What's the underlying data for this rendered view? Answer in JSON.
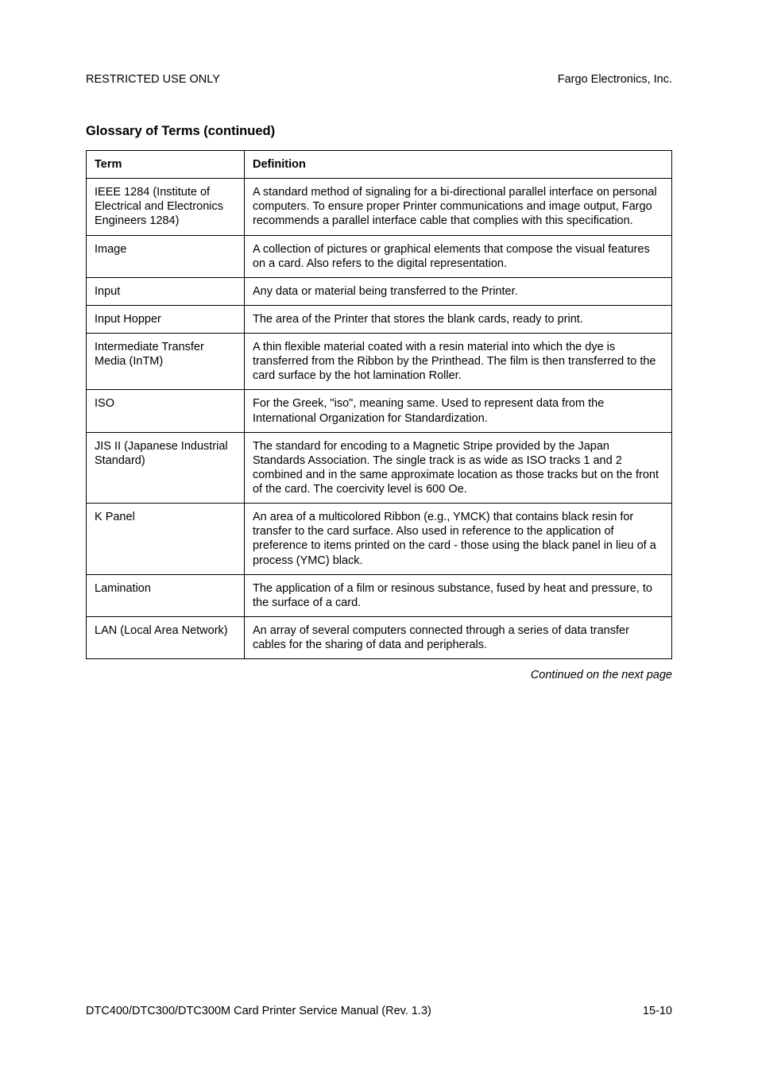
{
  "header": {
    "left": "RESTRICTED USE ONLY",
    "right": "Fargo Electronics, Inc."
  },
  "section_title": "Glossary of Terms (continued)",
  "table": {
    "columns": [
      "Term",
      "Definition"
    ],
    "rows": [
      {
        "term": "IEEE 1284 (Institute of Electrical and Electronics Engineers 1284)",
        "definition": "A standard method of signaling for a bi-directional parallel interface on personal computers. To ensure proper Printer communications and image output, Fargo recommends a parallel interface cable that complies with this specification."
      },
      {
        "term": "Image",
        "definition": "A collection of pictures or graphical elements that compose the visual features on a card. Also refers to the digital representation."
      },
      {
        "term": "Input",
        "definition": "Any data or material being transferred to the Printer."
      },
      {
        "term": "Input Hopper",
        "definition": "The area of the Printer that stores the blank cards, ready to print."
      },
      {
        "term": "Intermediate Transfer Media (InTM)",
        "definition": "A thin flexible material coated with a resin material into which the dye is transferred from the Ribbon by the Printhead. The film is then transferred to the card surface by the hot lamination Roller."
      },
      {
        "term": "ISO",
        "definition": "For the Greek, \"iso\", meaning same. Used to represent data from the International Organization for Standardization."
      },
      {
        "term": "JIS II (Japanese Industrial Standard)",
        "definition": "The standard for encoding to a Magnetic Stripe provided by the Japan Standards Association. The single track is as wide as ISO tracks 1 and 2 combined and in the same approximate location as those tracks but on the front of the card. The coercivity level is 600 Oe."
      },
      {
        "term": "K Panel",
        "definition": "An area of a multicolored Ribbon (e.g., YMCK) that contains black resin for transfer to the card surface. Also used in reference to the application of preference to items printed on the card - those using the black panel in lieu of a process (YMC) black."
      },
      {
        "term": "Lamination",
        "definition": "The application of a film or resinous substance, fused by heat and pressure, to the surface of a card."
      },
      {
        "term": "LAN (Local Area Network)",
        "definition": "An array of several computers connected through a series of data transfer cables for the sharing of data and peripherals."
      }
    ]
  },
  "continued_text": "Continued on the next page",
  "footer": {
    "left": "DTC400/DTC300/DTC300M Card Printer Service Manual (Rev. 1.3)",
    "right": "15-10"
  }
}
